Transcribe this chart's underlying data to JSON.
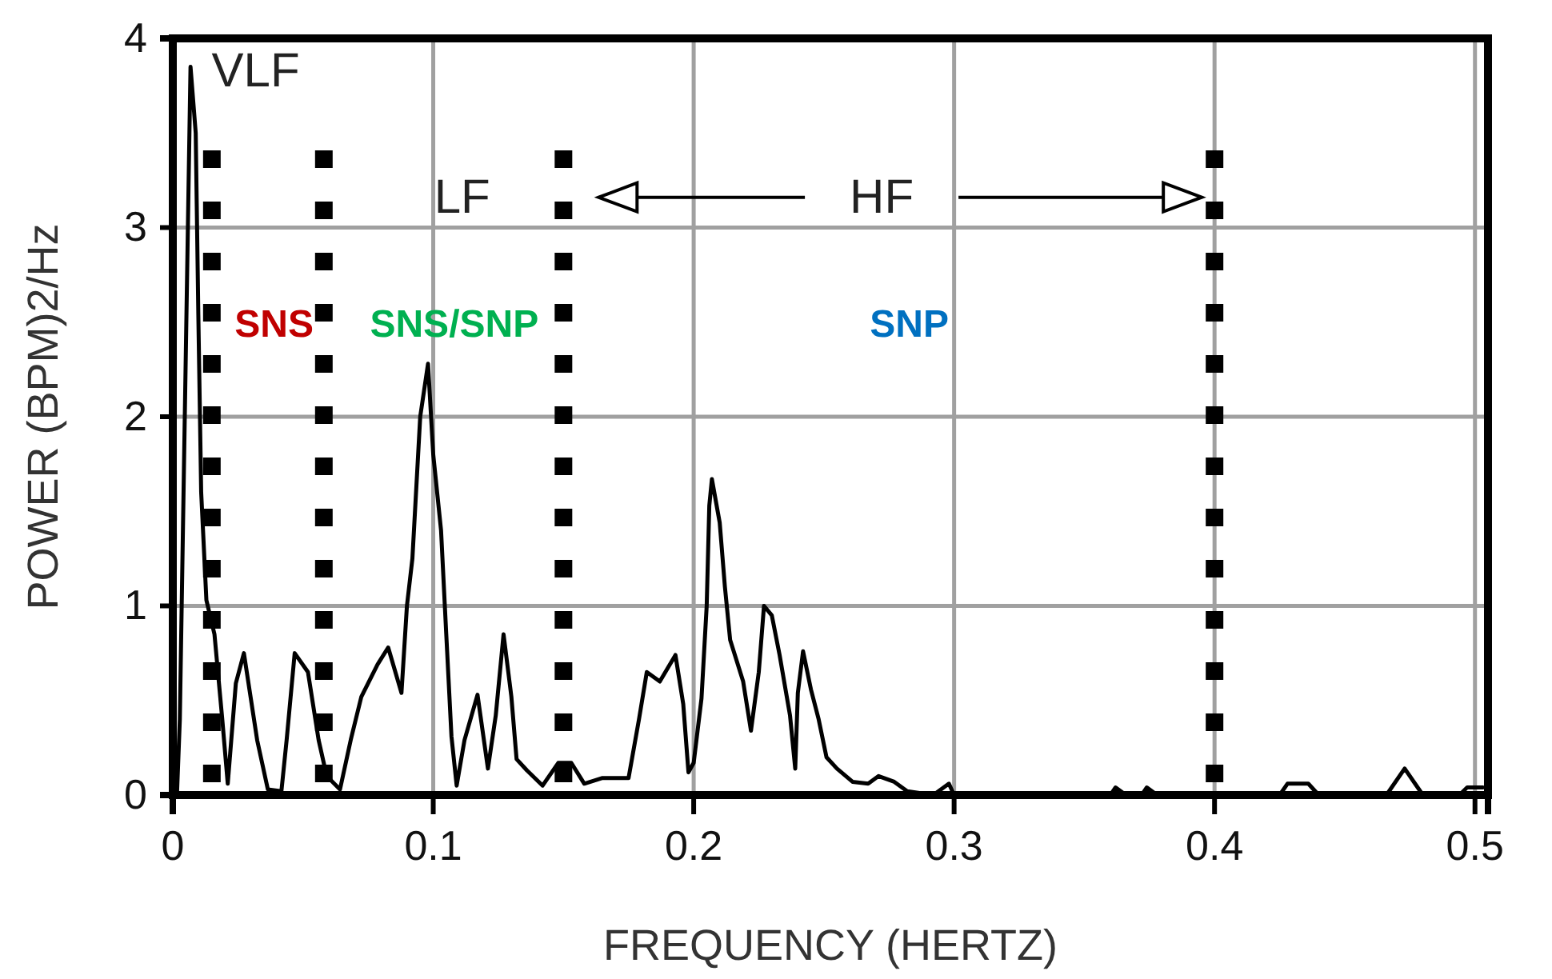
{
  "chart_data": {
    "type": "line",
    "xlabel": "FREQUENCY (HERTZ)",
    "ylabel": "POWER (BPM)2/Hz",
    "xlim": [
      0,
      0.505
    ],
    "ylim": [
      0,
      4
    ],
    "xticks": [
      0,
      0.1,
      0.2,
      0.3,
      0.4,
      0.5
    ],
    "yticks": [
      0,
      1,
      2,
      3,
      4
    ],
    "grid": true,
    "marker": "none",
    "line_style": "solid",
    "x": [
      0.0016,
      0.0027,
      0.0068,
      0.0088,
      0.0098,
      0.0109,
      0.0129,
      0.016,
      0.019,
      0.0211,
      0.0242,
      0.0273,
      0.0324,
      0.0365,
      0.0417,
      0.0437,
      0.0468,
      0.0519,
      0.056,
      0.0591,
      0.0642,
      0.0683,
      0.0724,
      0.0786,
      0.0827,
      0.0878,
      0.0899,
      0.092,
      0.095,
      0.098,
      0.1,
      0.103,
      0.105,
      0.107,
      0.109,
      0.112,
      0.117,
      0.121,
      0.124,
      0.127,
      0.13,
      0.132,
      0.136,
      0.142,
      0.148,
      0.153,
      0.158,
      0.165,
      0.175,
      0.179,
      0.182,
      0.187,
      0.193,
      0.196,
      0.198,
      0.2,
      0.203,
      0.205,
      0.206,
      0.207,
      0.21,
      0.212,
      0.214,
      0.219,
      0.222,
      0.225,
      0.227,
      0.23,
      0.233,
      0.237,
      0.239,
      0.24,
      0.242,
      0.245,
      0.248,
      0.251,
      0.255,
      0.261,
      0.267,
      0.271,
      0.277,
      0.282,
      0.292,
      0.298,
      0.3,
      0.36,
      0.362,
      0.366,
      0.372,
      0.374,
      0.378,
      0.425,
      0.428,
      0.436,
      0.44,
      0.466,
      0.473,
      0.48,
      0.494,
      0.497,
      0.503
    ],
    "series": [
      {
        "color": "#000000",
        "values": [
          0,
          0.4,
          3.85,
          3.5,
          2.54,
          1.6,
          1.03,
          0.85,
          0.4,
          0.06,
          0.59,
          0.75,
          0.29,
          0.03,
          0.02,
          0.29,
          0.75,
          0.65,
          0.29,
          0.1,
          0.03,
          0.29,
          0.52,
          0.69,
          0.78,
          0.54,
          1.0,
          1.25,
          2.0,
          2.28,
          1.8,
          1.4,
          0.85,
          0.31,
          0.05,
          0.29,
          0.53,
          0.14,
          0.42,
          0.85,
          0.52,
          0.19,
          0.13,
          0.05,
          0.17,
          0.17,
          0.06,
          0.09,
          0.09,
          0.4,
          0.65,
          0.6,
          0.74,
          0.48,
          0.12,
          0.17,
          0.51,
          1.0,
          1.53,
          1.67,
          1.44,
          1.1,
          0.82,
          0.6,
          0.34,
          0.65,
          1.0,
          0.95,
          0.74,
          0.42,
          0.14,
          0.54,
          0.76,
          0.56,
          0.4,
          0.2,
          0.14,
          0.07,
          0.06,
          0.1,
          0.07,
          0.02,
          0,
          0.06,
          0,
          0,
          0.04,
          0,
          0,
          0.04,
          0,
          0,
          0.06,
          0.06,
          0,
          0,
          0.14,
          0,
          0,
          0.04,
          0.04
        ]
      }
    ],
    "ref_lines": [
      {
        "axis": "x",
        "value": 0.015,
        "color": "#000000",
        "line_style": "dotted"
      },
      {
        "axis": "x",
        "value": 0.058,
        "color": "#000000",
        "line_style": "dotted"
      },
      {
        "axis": "x",
        "value": 0.15,
        "color": "#000000",
        "line_style": "dotted"
      },
      {
        "axis": "x",
        "value": 0.4,
        "color": "#000000",
        "line_style": "dotted"
      }
    ],
    "annotations": [
      "VLF",
      "LF",
      "HF",
      "SNS",
      "SNS/SNP",
      "SNP"
    ]
  }
}
